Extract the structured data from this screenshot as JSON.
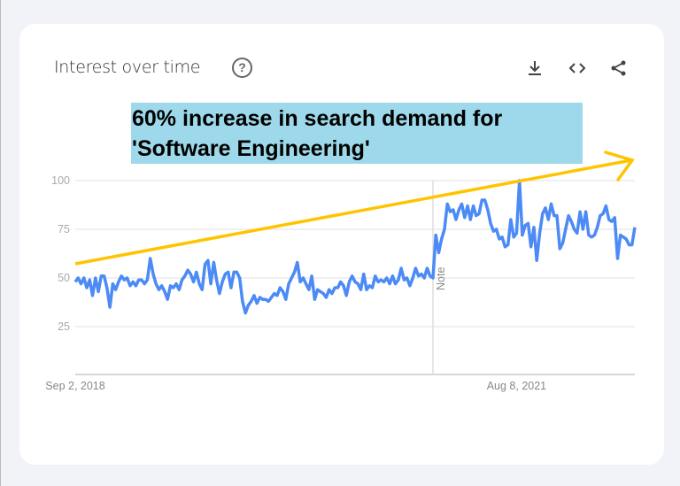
{
  "header": {
    "title": "Interest over time",
    "help_icon": "question-circle-icon",
    "actions": [
      "download-icon",
      "embed-code-icon",
      "share-icon"
    ]
  },
  "annotation": {
    "line1": "60% increase in search demand for",
    "line2": "'Software Engineering'"
  },
  "colors": {
    "series": "#4c8bf5",
    "trend_arrow": "#ffc400",
    "annotation_bg": "#9dd9ea"
  },
  "chart_data": {
    "type": "line",
    "title": "Interest over time",
    "xlabel": "",
    "ylabel": "",
    "ylim": [
      0,
      100
    ],
    "yticks": [
      "100",
      "75",
      "50",
      "25"
    ],
    "ytick_values": [
      100,
      75,
      50,
      25
    ],
    "xtick_labels": [
      "Sep 2, 2018",
      "Aug 8, 2021"
    ],
    "xtick_indices": [
      0,
      153
    ],
    "note": {
      "label": "Note",
      "index": 124
    },
    "series": [
      {
        "name": "Software Engineering",
        "values": [
          48,
          50,
          47,
          50,
          45,
          49,
          41,
          50,
          43,
          51,
          51,
          45,
          35,
          47,
          44,
          48,
          51,
          49,
          50,
          46,
          48,
          46,
          49,
          49,
          47,
          49,
          60,
          52,
          47,
          44,
          46,
          43,
          39,
          46,
          45,
          47,
          44,
          49,
          51,
          54,
          52,
          48,
          53,
          47,
          44,
          57,
          59,
          47,
          58,
          49,
          42,
          48,
          52,
          53,
          45,
          53,
          53,
          50,
          38,
          32,
          36,
          38,
          41,
          37,
          40,
          39,
          39,
          38,
          40,
          42,
          41,
          45,
          43,
          39,
          47,
          50,
          53,
          58,
          48,
          50,
          47,
          44,
          51,
          39,
          44,
          43,
          42,
          40,
          44,
          42,
          45,
          45,
          48,
          46,
          41,
          48,
          51,
          48,
          47,
          44,
          52,
          44,
          46,
          45,
          51,
          48,
          49,
          48,
          50,
          47,
          51,
          47,
          49,
          55,
          49,
          50,
          46,
          50,
          55,
          51,
          52,
          50,
          55,
          51,
          50,
          72,
          63,
          70,
          75,
          88,
          84,
          85,
          80,
          85,
          88,
          81,
          87,
          80,
          87,
          82,
          83,
          90,
          90,
          85,
          78,
          74,
          75,
          70,
          71,
          66,
          67,
          80,
          71,
          73,
          100,
          72,
          77,
          78,
          66,
          76,
          59,
          73,
          83,
          86,
          80,
          88,
          82,
          82,
          65,
          68,
          75,
          82,
          79,
          75,
          73,
          84,
          75,
          84,
          72,
          71,
          72,
          76,
          82,
          83,
          87,
          80,
          79,
          81,
          60,
          72,
          71,
          70,
          67,
          67,
          76
        ]
      }
    ]
  }
}
